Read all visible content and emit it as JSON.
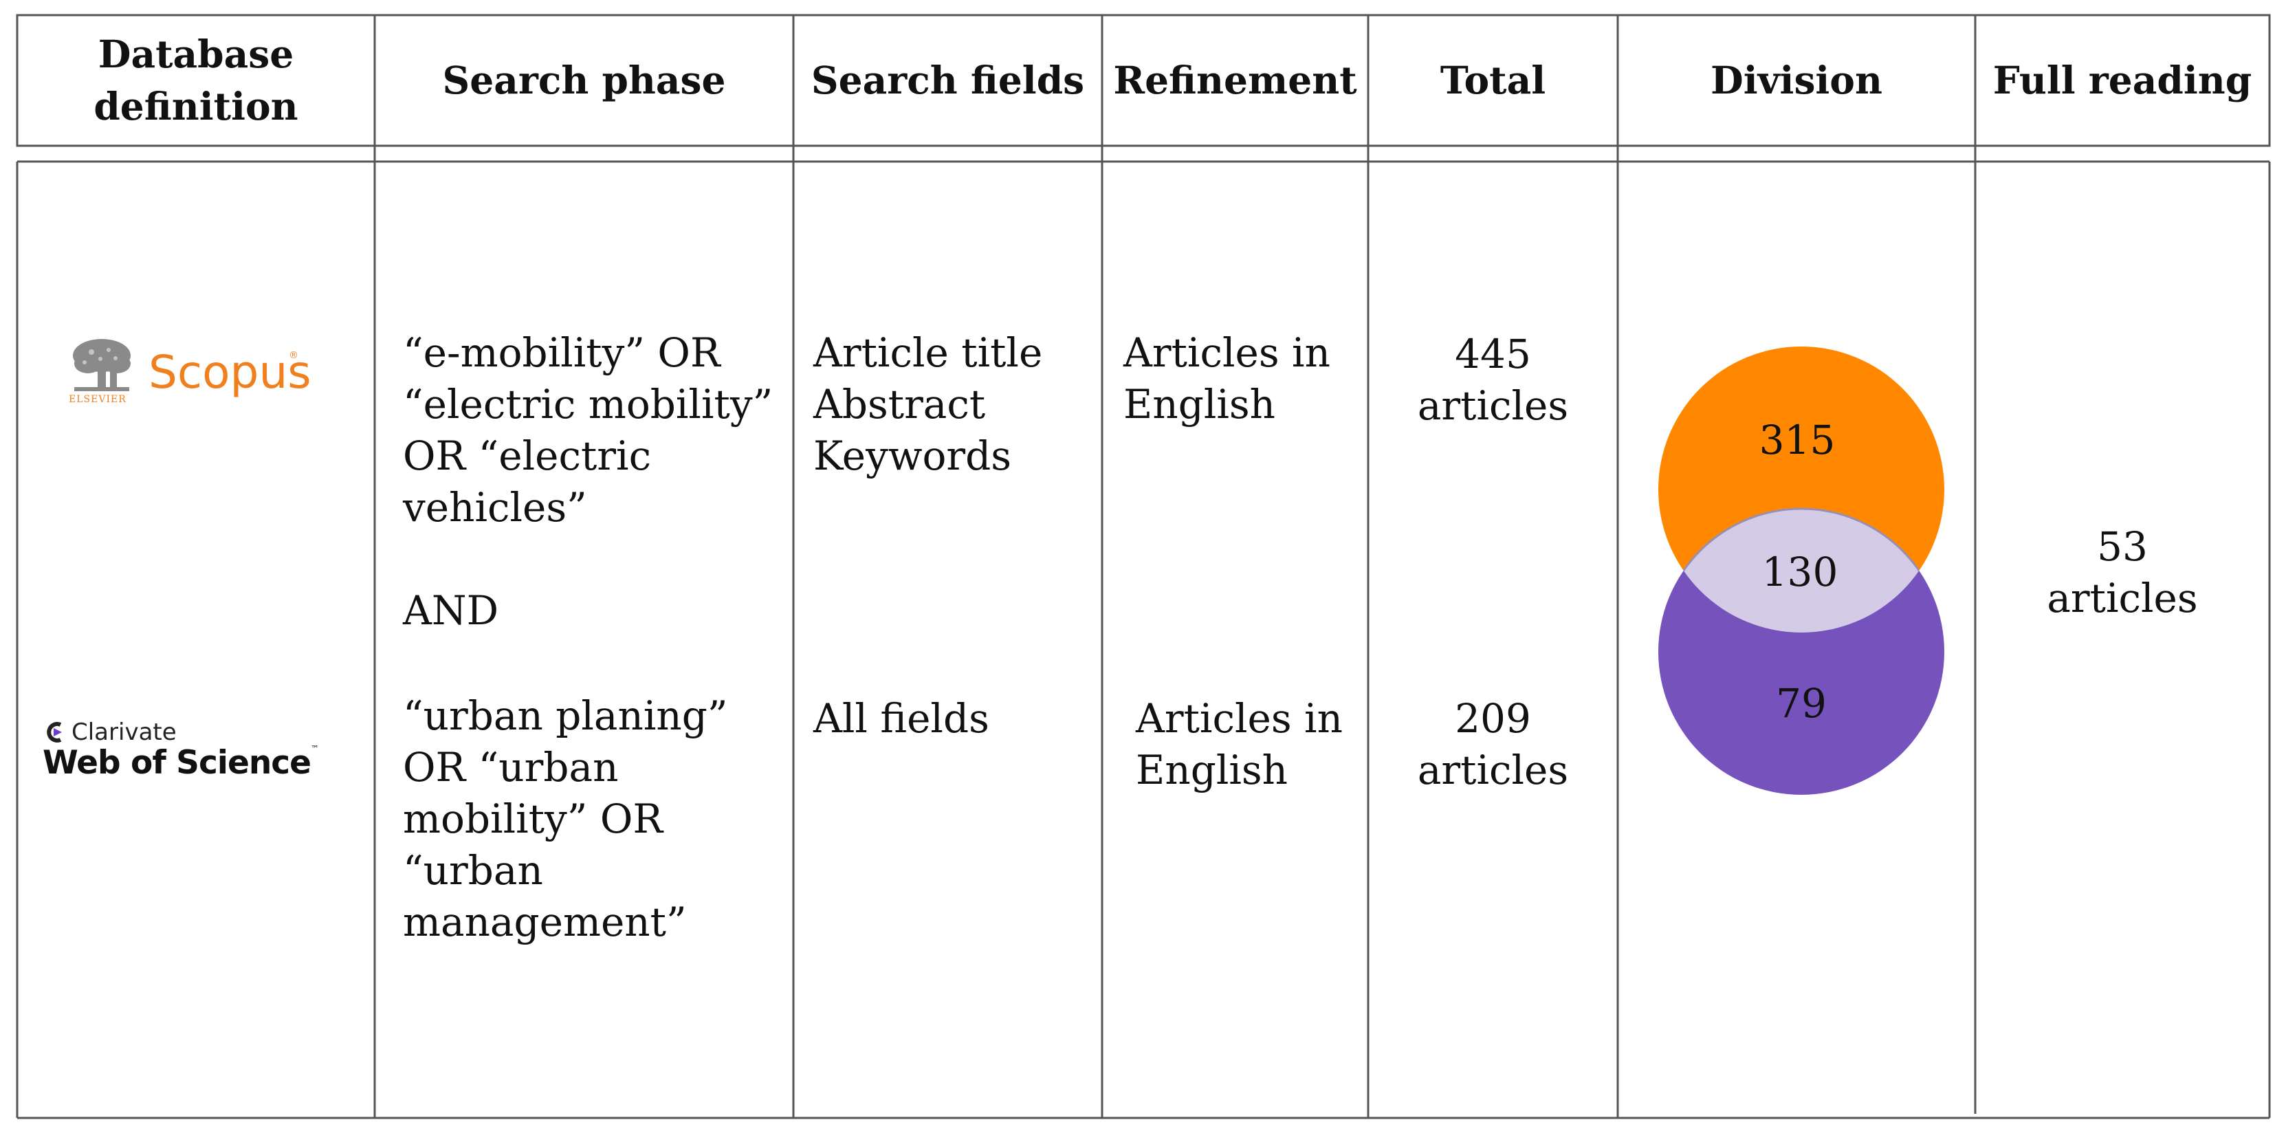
{
  "headers": {
    "database": [
      "Database",
      "definition"
    ],
    "search_phase": "Search phase",
    "search_fields": "Search fields",
    "refinement": "Refinement",
    "total": "Total",
    "division": "Division",
    "full_reading": "Full reading"
  },
  "databases": {
    "scopus": {
      "name": "Scopus",
      "publisher": "ELSEVIER",
      "icon": "elsevier-tree-icon"
    },
    "wos": {
      "company": "Clarivate",
      "name": "Web of Science",
      "icon": "clarivate-logo-icon"
    }
  },
  "search_phase": {
    "lines": [
      "“e-mobility” OR",
      "“electric mobility”",
      "OR “electric",
      "vehicles”"
    ],
    "operator": "AND",
    "lines2": [
      "“urban planing”",
      "OR “urban",
      "mobility” OR",
      "“urban",
      "management”"
    ]
  },
  "search_fields": {
    "scopus": [
      "Article title",
      "Abstract",
      "Keywords"
    ],
    "wos": "All fields"
  },
  "refinement": {
    "scopus": [
      "Articles in",
      "English"
    ],
    "wos": [
      "Articles in",
      "English"
    ]
  },
  "total": {
    "scopus": [
      "445",
      "articles"
    ],
    "wos": [
      "209",
      "articles"
    ]
  },
  "division": {
    "scopus_only": "315",
    "overlap": "130",
    "wos_only": "79",
    "colors": {
      "scopus": "#ff8800",
      "wos": "#7652bd",
      "overlap": "#d4cce6"
    }
  },
  "full_reading": [
    "53",
    "articles"
  ]
}
